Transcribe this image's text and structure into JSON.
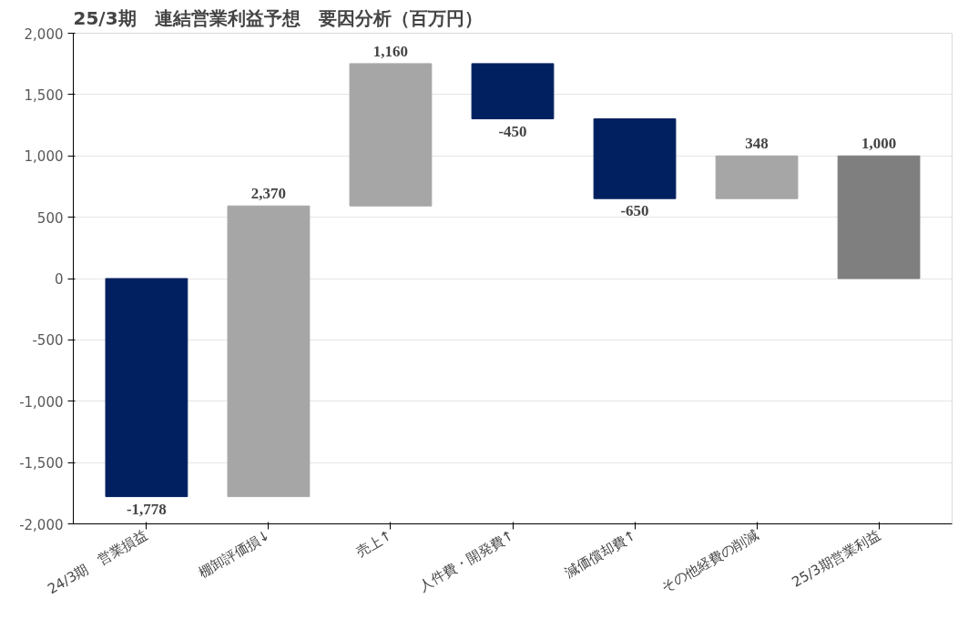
{
  "chart_data": {
    "type": "bar",
    "title": "25/3期　連結営業利益予想　要因分析（百万円）",
    "categories": [
      "24/3期　営業損益",
      "棚卸評価損↓",
      "売上↑",
      "人件費・開発費↑",
      "減価償却費↑",
      "その他経費の削減",
      "25/3期営業利益"
    ],
    "values": [
      -1778,
      2370,
      1160,
      -450,
      -650,
      348,
      1000
    ],
    "base": [
      0,
      -1778,
      592,
      1752,
      1302,
      652,
      0
    ],
    "colors": [
      "#002060",
      "#a6a6a6",
      "#a6a6a6",
      "#002060",
      "#002060",
      "#a6a6a6",
      "#7f7f7f"
    ],
    "value_labels": [
      "-1,778",
      "2,370",
      "1,160",
      "-450",
      "-650",
      "348",
      "1,000"
    ],
    "ylim": [
      -2000,
      2000
    ],
    "yticks": [
      {
        "value": -2000,
        "label": "-2,000"
      },
      {
        "value": -1500,
        "label": "-1,500"
      },
      {
        "value": -1000,
        "label": "-1,000"
      },
      {
        "value": -500,
        "label": "-500"
      },
      0,
      500,
      {
        "value": 1000,
        "label": "1,000"
      },
      {
        "value": 1500,
        "label": "1,500"
      },
      {
        "value": 2000,
        "label": "2,000"
      }
    ],
    "grid": "y"
  }
}
